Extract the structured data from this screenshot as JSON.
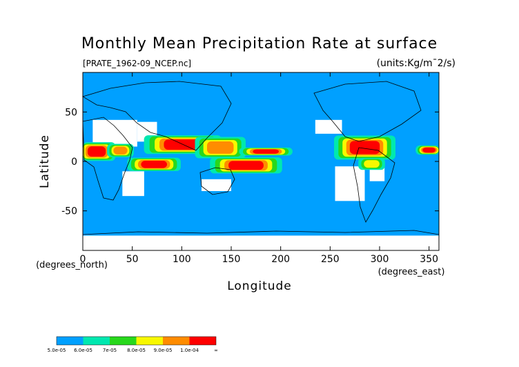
{
  "chart_data": {
    "type": "heatmap",
    "title": "Monthly Mean Precipitation Rate at surface",
    "source_label": "[PRATE_1962-09_NCEP.nc]",
    "units_label": "(units:Kg/m¯2/s)",
    "xlabel": "Longitude",
    "ylabel": "Latitude",
    "x_unit_label": "(degrees_east)",
    "y_unit_label": "(degrees_north)",
    "xlim": [
      0,
      360
    ],
    "ylim": [
      -90,
      90
    ],
    "x_ticks": [
      0,
      50,
      100,
      150,
      200,
      250,
      300,
      350
    ],
    "y_ticks": [
      50,
      0,
      -50
    ],
    "grid": false,
    "colorbar": {
      "placement": "bottom-left",
      "labels": [
        "5.0e-05",
        "6.0e-05",
        "7e-05",
        "8.0e-05",
        "9.0e-05",
        "1.0e-04",
        "∞"
      ],
      "colors": [
        "#00a0ff",
        "#00e8b0",
        "#28d81c",
        "#f8f800",
        "#ff8c00",
        "#ff0000"
      ]
    },
    "below_min_color": "#ffffff",
    "precip_regions": [
      {
        "lon": [
          0,
          28
        ],
        "lat": [
          3,
          17
        ],
        "level": 5
      },
      {
        "lon": [
          28,
          48
        ],
        "lat": [
          6,
          16
        ],
        "level": 4
      },
      {
        "lon": [
          52,
          92
        ],
        "lat": [
          -8,
          2
        ],
        "level": 5
      },
      {
        "lon": [
          72,
          130
        ],
        "lat": [
          10,
          24
        ],
        "level": 5
      },
      {
        "lon": [
          120,
          158
        ],
        "lat": [
          6,
          22
        ],
        "level": 4
      },
      {
        "lon": [
          138,
          192
        ],
        "lat": [
          -10,
          2
        ],
        "level": 5
      },
      {
        "lon": [
          165,
          205
        ],
        "lat": [
          7,
          13
        ],
        "level": 5
      },
      {
        "lon": [
          262,
          308
        ],
        "lat": [
          5,
          23
        ],
        "level": 5
      },
      {
        "lon": [
          282,
          302
        ],
        "lat": [
          -7,
          2
        ],
        "level": 3
      },
      {
        "lon": [
          340,
          360
        ],
        "lat": [
          8,
          15
        ],
        "level": 5
      }
    ],
    "dry_regions": [
      {
        "lon": [
          10,
          55
        ],
        "lat": [
          15,
          42
        ]
      },
      {
        "lon": [
          55,
          75
        ],
        "lat": [
          20,
          40
        ]
      },
      {
        "lon": [
          40,
          62
        ],
        "lat": [
          -35,
          -10
        ]
      },
      {
        "lon": [
          120,
          150
        ],
        "lat": [
          -30,
          -18
        ]
      },
      {
        "lon": [
          255,
          285
        ],
        "lat": [
          -40,
          -5
        ]
      },
      {
        "lon": [
          290,
          305
        ],
        "lat": [
          -20,
          -5
        ]
      },
      {
        "lon": [
          0,
          360
        ],
        "lat": [
          -90,
          -75
        ]
      },
      {
        "lon": [
          235,
          262
        ],
        "lat": [
          28,
          42
        ]
      }
    ]
  }
}
